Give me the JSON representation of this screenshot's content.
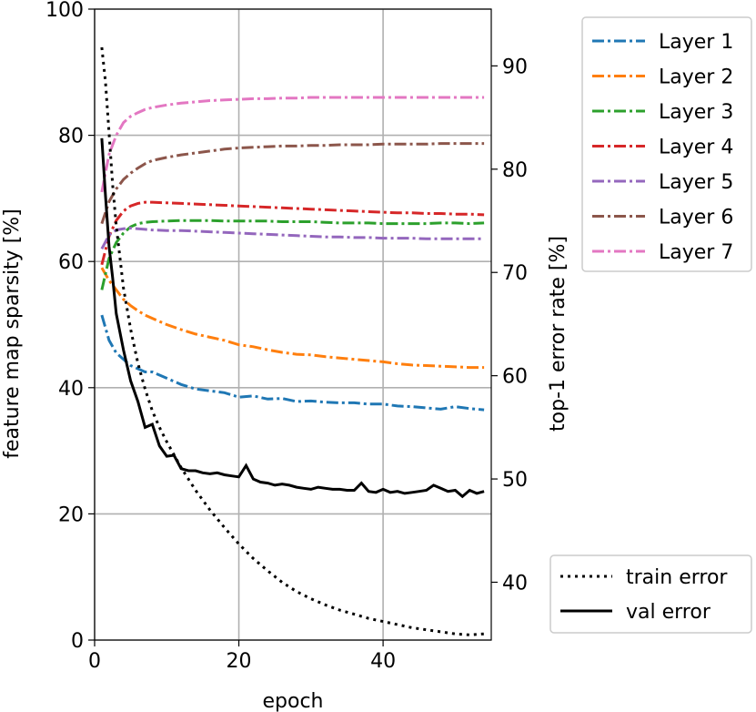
{
  "chart_data": {
    "type": "line",
    "xlabel": "epoch",
    "ylabel_left": "feature map sparsity [%]",
    "ylabel_right": "top-1 error rate [%]",
    "xlim": [
      0,
      55
    ],
    "ylim_left": [
      0,
      100
    ],
    "ylim_right": [
      34.4,
      95.5
    ],
    "x_ticks": [
      0,
      20,
      40
    ],
    "y_ticks_left": [
      0,
      20,
      40,
      60,
      80,
      100
    ],
    "y_ticks_right": [
      40,
      50,
      60,
      70,
      80,
      90
    ],
    "grid": true,
    "sparsity_legend_position": "top-right-outside",
    "error_legend_position": "bottom-right-outside",
    "sparsity_series": [
      {
        "name": "Layer 1",
        "color": "#1f77b4",
        "axis": "left",
        "x": [
          1,
          2,
          3,
          4,
          5,
          6,
          7,
          8,
          10,
          12,
          14,
          16,
          18,
          20,
          22,
          24,
          26,
          28,
          30,
          32,
          34,
          36,
          38,
          40,
          42,
          44,
          46,
          48,
          50,
          52,
          54
        ],
        "y": [
          51.5,
          47.5,
          45.5,
          44.5,
          43.5,
          43,
          42.5,
          42.5,
          41.5,
          40.5,
          39.8,
          39.5,
          39.2,
          38.5,
          38.7,
          38.2,
          38.3,
          37.8,
          37.9,
          37.7,
          37.6,
          37.6,
          37.4,
          37.4,
          37.1,
          37.0,
          36.8,
          36.6,
          37.0,
          36.7,
          36.5
        ]
      },
      {
        "name": "Layer 2",
        "color": "#ff7f0e",
        "axis": "left",
        "x": [
          1,
          2,
          3,
          4,
          5,
          6,
          7,
          8,
          10,
          12,
          14,
          16,
          18,
          20,
          22,
          24,
          26,
          28,
          30,
          32,
          34,
          36,
          38,
          40,
          42,
          44,
          46,
          48,
          50,
          52,
          54
        ],
        "y": [
          59,
          57,
          55.5,
          54,
          53,
          52.2,
          51.5,
          51,
          50,
          49.2,
          48.5,
          48,
          47.5,
          46.8,
          46.5,
          46,
          45.6,
          45.3,
          45.2,
          44.9,
          44.7,
          44.5,
          44.3,
          44.1,
          43.8,
          43.6,
          43.5,
          43.4,
          43.3,
          43.2,
          43.2
        ]
      },
      {
        "name": "Layer 3",
        "color": "#2ca02c",
        "axis": "left",
        "x": [
          1,
          2,
          3,
          4,
          5,
          6,
          7,
          8,
          10,
          12,
          14,
          16,
          18,
          20,
          22,
          24,
          26,
          28,
          30,
          32,
          34,
          36,
          38,
          40,
          42,
          44,
          46,
          48,
          50,
          52,
          54
        ],
        "y": [
          55.5,
          60.5,
          63,
          64.5,
          65.5,
          66,
          66.2,
          66.3,
          66.4,
          66.5,
          66.5,
          66.5,
          66.4,
          66.4,
          66.4,
          66.4,
          66.3,
          66.3,
          66.3,
          66.2,
          66.1,
          66.1,
          66.1,
          66.0,
          66.0,
          66.0,
          66.0,
          66.1,
          66.1,
          66.0,
          66.1
        ]
      },
      {
        "name": "Layer 4",
        "color": "#d62728",
        "axis": "left",
        "x": [
          1,
          2,
          3,
          4,
          5,
          6,
          7,
          8,
          10,
          12,
          14,
          16,
          18,
          20,
          22,
          24,
          26,
          28,
          30,
          32,
          34,
          36,
          38,
          40,
          42,
          44,
          46,
          48,
          50,
          52,
          54
        ],
        "y": [
          59.5,
          64,
          66.5,
          68,
          68.8,
          69.2,
          69.4,
          69.4,
          69.3,
          69.2,
          69.1,
          69.0,
          68.9,
          68.8,
          68.7,
          68.6,
          68.5,
          68.4,
          68.3,
          68.2,
          68.1,
          68.0,
          67.9,
          67.8,
          67.7,
          67.7,
          67.6,
          67.6,
          67.5,
          67.5,
          67.4
        ]
      },
      {
        "name": "Layer 5",
        "color": "#9467bd",
        "axis": "left",
        "x": [
          1,
          2,
          3,
          4,
          5,
          6,
          7,
          8,
          10,
          12,
          14,
          16,
          18,
          20,
          22,
          24,
          26,
          28,
          30,
          32,
          34,
          36,
          38,
          40,
          42,
          44,
          46,
          48,
          50,
          52,
          54
        ],
        "y": [
          62,
          64.2,
          65,
          65.2,
          65.3,
          65.2,
          65.1,
          65.0,
          64.9,
          64.9,
          64.8,
          64.7,
          64.6,
          64.5,
          64.4,
          64.3,
          64.2,
          64.1,
          64.0,
          63.9,
          63.9,
          63.8,
          63.8,
          63.7,
          63.7,
          63.7,
          63.6,
          63.6,
          63.6,
          63.6,
          63.6
        ]
      },
      {
        "name": "Layer 6",
        "color": "#8c564b",
        "axis": "left",
        "x": [
          1,
          2,
          3,
          4,
          5,
          6,
          7,
          8,
          10,
          12,
          14,
          16,
          18,
          20,
          22,
          24,
          26,
          28,
          30,
          32,
          34,
          36,
          38,
          40,
          42,
          44,
          46,
          48,
          50,
          52,
          54
        ],
        "y": [
          66,
          69.5,
          71.5,
          73,
          74,
          74.8,
          75.5,
          76,
          76.5,
          76.9,
          77.2,
          77.5,
          77.8,
          78.0,
          78.1,
          78.2,
          78.3,
          78.3,
          78.4,
          78.4,
          78.5,
          78.5,
          78.5,
          78.6,
          78.6,
          78.6,
          78.6,
          78.7,
          78.7,
          78.7,
          78.7
        ]
      },
      {
        "name": "Layer 7",
        "color": "#e377c2",
        "axis": "left",
        "x": [
          1,
          2,
          3,
          4,
          5,
          6,
          7,
          8,
          10,
          12,
          14,
          16,
          18,
          20,
          22,
          24,
          26,
          28,
          30,
          32,
          34,
          36,
          38,
          40,
          42,
          44,
          46,
          48,
          50,
          52,
          54
        ],
        "y": [
          71,
          77,
          80,
          82,
          83,
          83.6,
          84.1,
          84.4,
          84.8,
          85.1,
          85.3,
          85.5,
          85.6,
          85.7,
          85.8,
          85.8,
          85.9,
          85.9,
          86.0,
          86.0,
          86.0,
          86.0,
          86.0,
          86.0,
          86.0,
          86.0,
          86.0,
          86.0,
          86.0,
          86.0,
          86.0
        ]
      }
    ],
    "error_series": [
      {
        "name": "train error",
        "color": "#000000",
        "style": "dotted",
        "axis": "right",
        "x": [
          1,
          1.5,
          2,
          2.5,
          3,
          4,
          5,
          6,
          7,
          8,
          9,
          10,
          12,
          14,
          16,
          18,
          20,
          22,
          24,
          26,
          28,
          30,
          32,
          34,
          36,
          38,
          40,
          42,
          44,
          46,
          48,
          50,
          52,
          54
        ],
        "y": [
          91.8,
          88.5,
          83.5,
          78.5,
          74.5,
          68.5,
          64.5,
          61.2,
          58.7,
          56.6,
          55.0,
          53.6,
          51.1,
          48.9,
          47.0,
          45.3,
          43.7,
          42.3,
          41.1,
          40.0,
          39.1,
          38.4,
          37.8,
          37.3,
          36.9,
          36.5,
          36.2,
          35.9,
          35.6,
          35.4,
          35.2,
          35.0,
          34.9,
          35.0
        ]
      },
      {
        "name": "val error",
        "color": "#000000",
        "style": "solid",
        "axis": "right",
        "x": [
          1,
          1.5,
          2,
          2.5,
          3,
          4,
          5,
          6,
          7,
          8,
          9,
          10,
          11,
          12,
          13,
          14,
          15,
          16,
          17,
          18,
          19,
          20,
          21,
          22,
          23,
          24,
          25,
          26,
          27,
          28,
          29,
          30,
          31,
          32,
          33,
          34,
          35,
          36,
          37,
          38,
          39,
          40,
          41,
          42,
          43,
          44,
          45,
          46,
          47,
          48,
          49,
          50,
          51,
          52,
          53,
          54
        ],
        "y": [
          83.0,
          77.5,
          72.5,
          69.5,
          66.0,
          62.5,
          59.5,
          57.5,
          55.0,
          55.3,
          53.2,
          52.2,
          52.3,
          51.0,
          50.8,
          50.8,
          50.6,
          50.5,
          50.6,
          50.4,
          50.3,
          50.2,
          51.3,
          50.0,
          49.7,
          49.6,
          49.4,
          49.5,
          49.4,
          49.2,
          49.1,
          49.0,
          49.2,
          49.1,
          49.0,
          49.0,
          48.9,
          48.9,
          49.6,
          48.8,
          48.7,
          49.0,
          48.7,
          48.8,
          48.6,
          48.7,
          48.8,
          48.9,
          49.4,
          49.1,
          48.8,
          48.9,
          48.3,
          48.9,
          48.6,
          48.8
        ]
      }
    ]
  }
}
